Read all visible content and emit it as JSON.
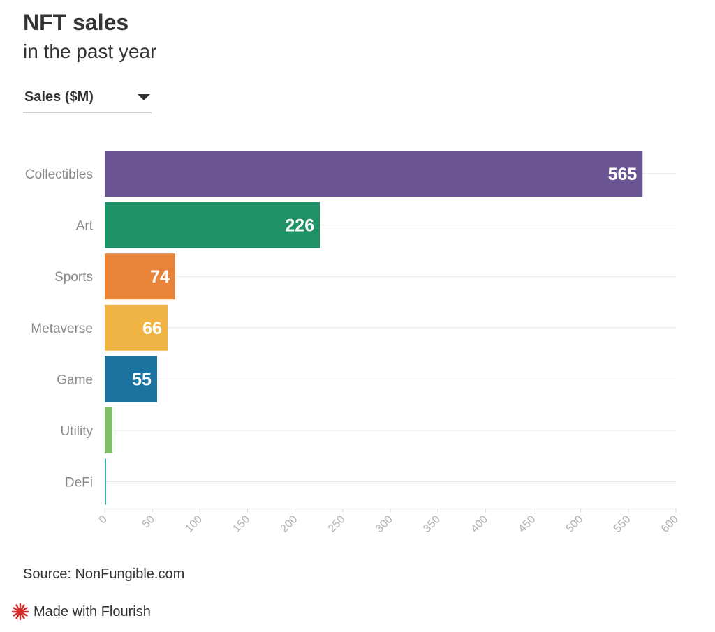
{
  "header": {
    "title": "NFT sales",
    "subtitle": "in the past year"
  },
  "selector": {
    "value": "Sales ($M)"
  },
  "chart_data": {
    "type": "bar",
    "orientation": "horizontal",
    "categories": [
      "Collectibles",
      "Art",
      "Sports",
      "Metaverse",
      "Game",
      "Utility",
      "DeFi"
    ],
    "values": [
      565,
      226,
      74,
      66,
      55,
      8,
      1.5
    ],
    "data_labels": [
      "565",
      "226",
      "74",
      "66",
      "55",
      "",
      ""
    ],
    "colors": [
      "#6b5493",
      "#1f9166",
      "#e8833a",
      "#f0b444",
      "#1d73a0",
      "#7fbf68",
      "#3ab0a8"
    ],
    "xlim": [
      0,
      600
    ],
    "x_ticks": [
      0,
      50,
      100,
      150,
      200,
      250,
      300,
      350,
      400,
      450,
      500,
      550,
      600
    ],
    "x_tick_labels": [
      "0",
      "50",
      "100",
      "150",
      "200",
      "250",
      "300",
      "350",
      "400",
      "450",
      "500",
      "550",
      "600"
    ],
    "grid": true
  },
  "footer": {
    "source": "Source: NonFungible.com",
    "credit": "Made with Flourish"
  }
}
